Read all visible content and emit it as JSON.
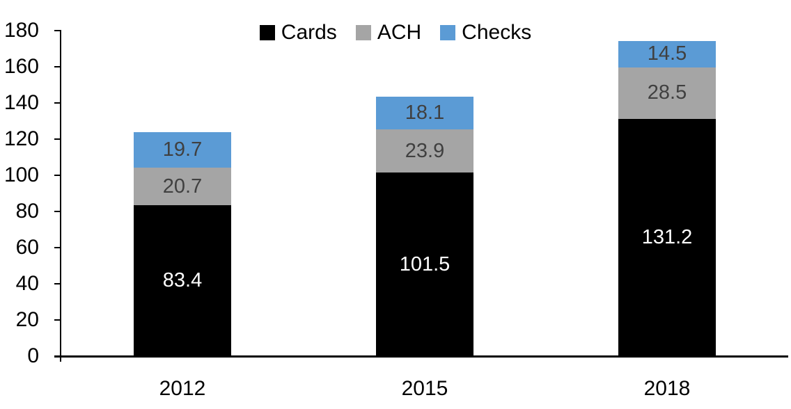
{
  "chart_data": {
    "type": "bar",
    "stacked": true,
    "title": "",
    "categories": [
      "2012",
      "2015",
      "2018"
    ],
    "series": [
      {
        "name": "Cards",
        "color": "#000000",
        "label_color": "#ffffff",
        "values": [
          83.4,
          101.5,
          131.2
        ]
      },
      {
        "name": "ACH",
        "color": "#A5A5A5",
        "label_color": "#404040",
        "values": [
          20.7,
          23.9,
          28.5
        ]
      },
      {
        "name": "Checks",
        "color": "#5B9BD5",
        "label_color": "#404040",
        "values": [
          19.7,
          18.1,
          14.5
        ]
      }
    ],
    "totals": [
      123.8,
      143.5,
      174.2
    ],
    "ylim": [
      0,
      180
    ],
    "ytick_step": 20,
    "ytick_labels": [
      "0",
      "20",
      "40",
      "60",
      "80",
      "100",
      "120",
      "140",
      "160",
      "180"
    ],
    "grid": false,
    "legend_position": "top-center",
    "legend_labels": [
      "Cards",
      "ACH",
      "Checks"
    ],
    "axis_color": "#000000",
    "background_color": "#ffffff"
  }
}
